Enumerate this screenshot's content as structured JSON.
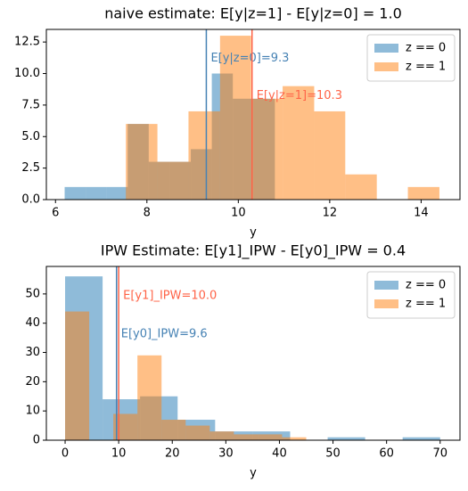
{
  "chart_data": [
    {
      "type": "histogram",
      "title": "naive estimate: E[y|z=1] - E[y|z=0] = 1.0",
      "xlabel": "y",
      "xlim": [
        5.8,
        14.85
      ],
      "ylim": [
        0,
        13.5
      ],
      "xticks": [
        6,
        8,
        10,
        12,
        14
      ],
      "yticks": [
        {
          "value": 0,
          "label": "0.0"
        },
        {
          "value": 2.5,
          "label": "2.5"
        },
        {
          "value": 5,
          "label": "5.0"
        },
        {
          "value": 7.5,
          "label": "7.5"
        },
        {
          "value": 10,
          "label": "10.0"
        },
        {
          "value": 12.5,
          "label": "12.5"
        }
      ],
      "legend": "upper right",
      "series": [
        {
          "name": "z == 0",
          "color": "#1f77b4",
          "bins": [
            6.2,
            6.66,
            7.12,
            7.58,
            8.04,
            8.5,
            8.96,
            9.42,
            9.88,
            10.34,
            10.8
          ],
          "values": [
            1,
            1,
            1,
            6,
            3,
            3,
            4,
            10,
            8,
            8
          ]
        },
        {
          "name": "z == 1",
          "color": "#ff7f0e",
          "bins": [
            7.54,
            8.23,
            8.91,
            9.6,
            10.28,
            10.97,
            11.66,
            12.34,
            13.03,
            13.71,
            14.4
          ],
          "values": [
            6,
            3,
            7,
            13,
            8,
            9,
            7,
            2,
            0,
            1
          ]
        }
      ],
      "annotations": [
        {
          "x": 9.3,
          "label": "E[y|z=0]=9.3",
          "color": "#4682b4"
        },
        {
          "x": 10.3,
          "label": "E[y|z=1]=10.3",
          "color": "#ff6347"
        }
      ]
    },
    {
      "type": "histogram",
      "title": "IPW Estimate: E[y1]_IPW - E[y0]_IPW = 0.4",
      "xlabel": "y",
      "xlim": [
        -3.5,
        73.7
      ],
      "ylim": [
        0,
        59.4
      ],
      "xticks": [
        0,
        10,
        20,
        30,
        40,
        50,
        60,
        70
      ],
      "yticks": [
        0,
        10,
        20,
        30,
        40,
        50
      ],
      "legend": "upper right",
      "series": [
        {
          "name": "z == 0",
          "color": "#1f77b4",
          "bins": [
            0,
            7,
            14,
            21,
            28,
            35,
            42,
            49,
            56,
            63,
            70
          ],
          "values": [
            56,
            14,
            15,
            7,
            3,
            3,
            0,
            1,
            0,
            1
          ]
        },
        {
          "name": "z == 1",
          "color": "#ff7f0e",
          "bins": [
            0,
            4.5,
            9,
            13.5,
            18,
            22.5,
            27,
            31.5,
            36,
            40.5,
            45
          ],
          "values": [
            44,
            0,
            9,
            29,
            7,
            5,
            3,
            2,
            2,
            1
          ]
        }
      ],
      "annotations": [
        {
          "x": 10.0,
          "label": "E[y1]_IPW=10.0",
          "color": "#ff6347"
        },
        {
          "x": 9.6,
          "label": "E[y0]_IPW=9.6",
          "color": "#4682b4"
        }
      ]
    }
  ]
}
